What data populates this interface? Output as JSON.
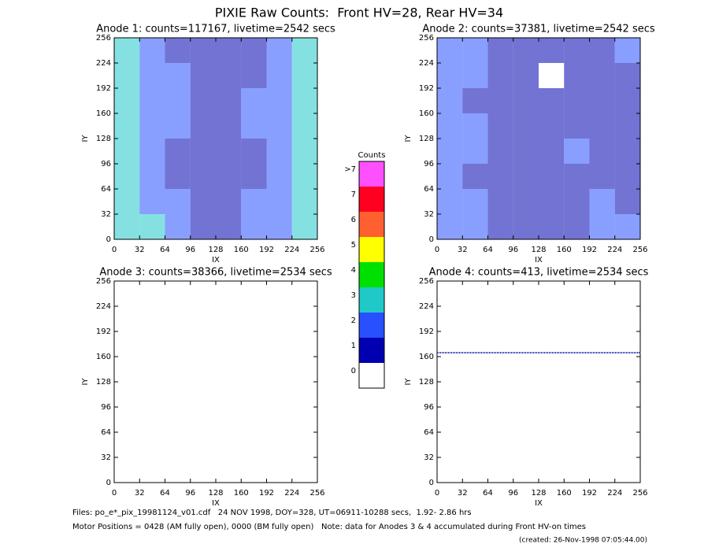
{
  "title": "PIXIE Raw Counts:  Front HV=28, Rear HV=34",
  "chart_data": [
    {
      "type": "heatmap",
      "title": "Anode 1: counts=117167, livetime=2542 secs",
      "x_label": "IX",
      "y_label": "IY",
      "xlim": [
        0,
        256
      ],
      "ylim": [
        0,
        256
      ],
      "xticks": [
        0,
        32,
        64,
        96,
        128,
        160,
        192,
        224,
        256
      ],
      "yticks": [
        0,
        32,
        64,
        96,
        128,
        160,
        192,
        224,
        256
      ],
      "z": [
        [
          3,
          3,
          2,
          1,
          1,
          2,
          2,
          3
        ],
        [
          3,
          2,
          2,
          1,
          1,
          2,
          2,
          3
        ],
        [
          3,
          2,
          1,
          1,
          1,
          1,
          2,
          3
        ],
        [
          3,
          2,
          1,
          1,
          1,
          1,
          2,
          3
        ],
        [
          3,
          2,
          2,
          1,
          1,
          2,
          2,
          3
        ],
        [
          3,
          2,
          2,
          1,
          1,
          2,
          2,
          3
        ],
        [
          3,
          2,
          2,
          1,
          1,
          1,
          2,
          3
        ],
        [
          3,
          2,
          1,
          1,
          1,
          1,
          2,
          3
        ]
      ]
    },
    {
      "type": "heatmap",
      "title": "Anode 2: counts=37381, livetime=2542 secs",
      "x_label": "IX",
      "y_label": "IY",
      "xlim": [
        0,
        256
      ],
      "ylim": [
        0,
        256
      ],
      "xticks": [
        0,
        32,
        64,
        96,
        128,
        160,
        192,
        224,
        256
      ],
      "yticks": [
        0,
        32,
        64,
        96,
        128,
        160,
        192,
        224,
        256
      ],
      "z": [
        [
          2,
          2,
          1,
          1,
          1,
          1,
          2,
          2
        ],
        [
          2,
          2,
          1,
          1,
          1,
          1,
          2,
          1
        ],
        [
          2,
          1,
          1,
          1,
          1,
          1,
          1,
          1
        ],
        [
          2,
          2,
          1,
          1,
          1,
          2,
          1,
          1
        ],
        [
          2,
          2,
          1,
          1,
          1,
          1,
          1,
          1
        ],
        [
          2,
          1,
          1,
          1,
          1,
          1,
          1,
          1
        ],
        [
          2,
          2,
          1,
          1,
          0,
          1,
          1,
          1
        ],
        [
          2,
          2,
          1,
          1,
          1,
          1,
          1,
          2
        ]
      ]
    },
    {
      "type": "heatmap",
      "title": "Anode 3: counts=38366, livetime=2534 secs",
      "x_label": "IX",
      "y_label": "IY",
      "xlim": [
        0,
        256
      ],
      "ylim": [
        0,
        256
      ],
      "xticks": [
        0,
        32,
        64,
        96,
        128,
        160,
        192,
        224,
        256
      ],
      "yticks": [
        0,
        32,
        64,
        96,
        128,
        160,
        192,
        224,
        256
      ]
    },
    {
      "type": "heatmap",
      "title": "Anode 4: counts=413, livetime=2534 secs",
      "x_label": "IX",
      "y_label": "IY",
      "xlim": [
        0,
        256
      ],
      "ylim": [
        0,
        256
      ],
      "xticks": [
        0,
        32,
        64,
        96,
        128,
        160,
        192,
        224,
        256
      ],
      "yticks": [
        0,
        32,
        64,
        96,
        128,
        160,
        192,
        224,
        256
      ],
      "series": [
        {
          "x": [
            0,
            256
          ],
          "values": [
            165,
            165
          ],
          "color": "#0000b0"
        }
      ]
    }
  ],
  "colorbar": {
    "title": "Counts",
    "levels": [
      "0",
      "1",
      "2",
      "3",
      "4",
      "5",
      "6",
      "7",
      ">7"
    ],
    "colors": [
      "#ffffff",
      "#0000b0",
      "#2850ff",
      "#20c8c8",
      "#00e000",
      "#ffff00",
      "#ff6030",
      "#ff0020",
      "#ff50ff"
    ]
  },
  "footer": [
    "Files: po_e*_pix_19981124_v01.cdf   24 NOV 1998, DOY=328, UT=06911-10288 secs,  1.92- 2.86 hrs",
    "Motor Positions = 0428 (AM fully open), 0000 (BM fully open)   Note: data for Anodes 3 & 4 accumulated during Front HV-on times",
    "(created: 26-Nov-1998 07:05:44.00)"
  ]
}
